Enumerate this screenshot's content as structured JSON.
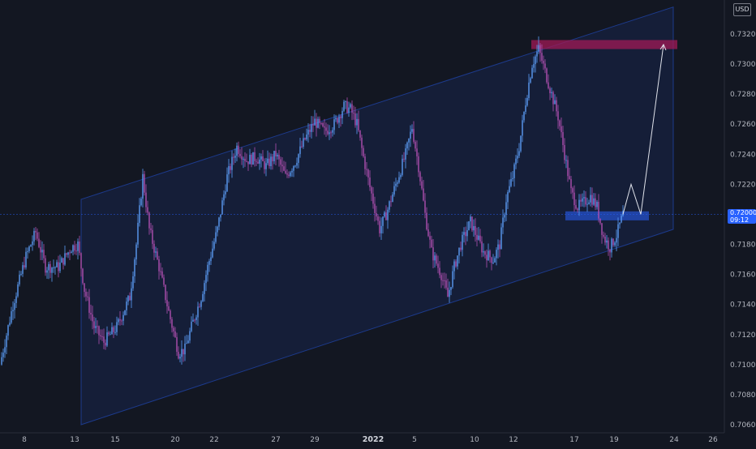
{
  "chart_data": {
    "type": "candlestick",
    "currency": "USD",
    "current_price_label": "0.72000",
    "countdown": "09:12",
    "y_ticks": [
      "0.73200",
      "0.73000",
      "0.72800",
      "0.72600",
      "0.72400",
      "0.72200",
      "0.72000",
      "0.71800",
      "0.71600",
      "0.71400",
      "0.71200",
      "0.71000",
      "0.70800",
      "0.70600"
    ],
    "x_ticks": [
      "8",
      "13",
      "15",
      "20",
      "22",
      "27",
      "29",
      "2022",
      "5",
      "10",
      "12",
      "17",
      "19",
      "24",
      "26"
    ],
    "ylim": [
      0.7055,
      0.7335
    ],
    "colors": {
      "up": "#5b9cf6",
      "down": "#b04fb0",
      "channel": "#2962ff",
      "resistance": "#a01a55",
      "support": "#2962ff",
      "projection": "#e0e3eb"
    },
    "price_anchors": [
      [
        0,
        0.71
      ],
      [
        8,
        0.714
      ],
      [
        16,
        0.7172
      ],
      [
        22,
        0.7188
      ],
      [
        28,
        0.7165
      ],
      [
        36,
        0.7165
      ],
      [
        44,
        0.7178
      ],
      [
        48,
        0.718
      ],
      [
        52,
        0.715
      ],
      [
        58,
        0.7125
      ],
      [
        64,
        0.7115
      ],
      [
        72,
        0.7125
      ],
      [
        80,
        0.7145
      ],
      [
        84,
        0.718
      ],
      [
        88,
        0.7225
      ],
      [
        92,
        0.719
      ],
      [
        98,
        0.7165
      ],
      [
        104,
        0.7135
      ],
      [
        110,
        0.7108
      ],
      [
        114,
        0.711
      ],
      [
        118,
        0.7125
      ],
      [
        124,
        0.7145
      ],
      [
        128,
        0.7165
      ],
      [
        134,
        0.719
      ],
      [
        140,
        0.7225
      ],
      [
        146,
        0.7245
      ],
      [
        152,
        0.7236
      ],
      [
        158,
        0.7238
      ],
      [
        164,
        0.7232
      ],
      [
        170,
        0.724
      ],
      [
        176,
        0.7225
      ],
      [
        182,
        0.7235
      ],
      [
        188,
        0.725
      ],
      [
        194,
        0.7262
      ],
      [
        200,
        0.7255
      ],
      [
        206,
        0.726
      ],
      [
        212,
        0.7272
      ],
      [
        216,
        0.727
      ],
      [
        220,
        0.726
      ],
      [
        224,
        0.7238
      ],
      [
        228,
        0.7218
      ],
      [
        234,
        0.719
      ],
      [
        238,
        0.72
      ],
      [
        244,
        0.722
      ],
      [
        250,
        0.724
      ],
      [
        254,
        0.7258
      ],
      [
        258,
        0.7232
      ],
      [
        262,
        0.72
      ],
      [
        266,
        0.7175
      ],
      [
        272,
        0.716
      ],
      [
        276,
        0.7145
      ],
      [
        280,
        0.7165
      ],
      [
        284,
        0.718
      ],
      [
        290,
        0.7195
      ],
      [
        294,
        0.7185
      ],
      [
        298,
        0.7175
      ],
      [
        304,
        0.717
      ],
      [
        308,
        0.718
      ],
      [
        312,
        0.721
      ],
      [
        316,
        0.7225
      ],
      [
        320,
        0.7245
      ],
      [
        324,
        0.7275
      ],
      [
        328,
        0.73
      ],
      [
        332,
        0.731
      ],
      [
        336,
        0.7295
      ],
      [
        340,
        0.728
      ],
      [
        344,
        0.7265
      ],
      [
        348,
        0.724
      ],
      [
        352,
        0.7215
      ],
      [
        356,
        0.7205
      ],
      [
        360,
        0.7208
      ],
      [
        364,
        0.7212
      ],
      [
        368,
        0.7205
      ],
      [
        372,
        0.7185
      ],
      [
        376,
        0.7178
      ],
      [
        380,
        0.7186
      ],
      [
        384,
        0.72
      ]
    ],
    "channel": {
      "upper": [
        [
          100,
          0.721
        ],
        [
          830,
          0.7338
        ]
      ],
      "lower": [
        [
          100,
          0.706
        ],
        [
          830,
          0.719
        ]
      ]
    },
    "resistance_zone": {
      "price_top": 0.7316,
      "price_bottom": 0.731
    },
    "support_zone": {
      "price_top": 0.7202,
      "price_bottom": 0.7196
    },
    "projection": [
      [
        768,
        0.72
      ],
      [
        778,
        0.722
      ],
      [
        790,
        0.72
      ],
      [
        818,
        0.7313
      ]
    ]
  }
}
